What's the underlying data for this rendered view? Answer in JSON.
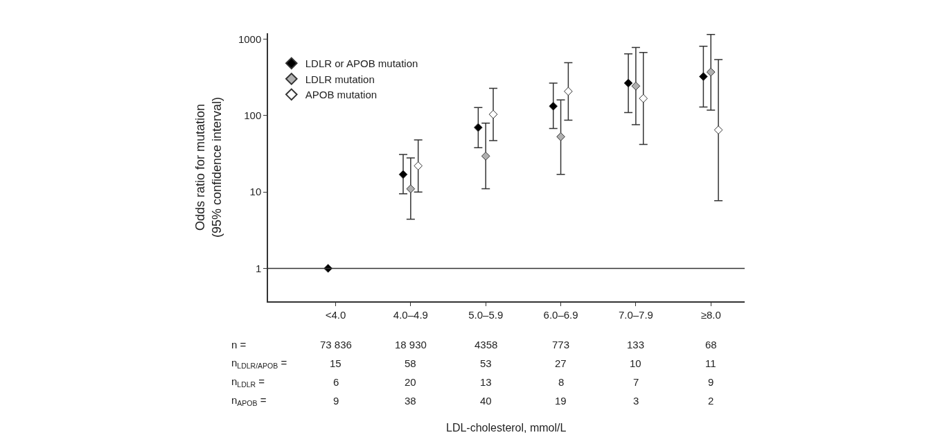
{
  "chart_data": {
    "type": "scatter",
    "ylabel": "Odds ratio for mutation\n(95% confidence interval)",
    "categories": [
      "<4.0",
      "4.0–4.9",
      "5.0–5.9",
      "6.0–6.9",
      "7.0–7.9",
      "≥8.0"
    ],
    "series": [
      {
        "name": "LDLR or APOB mutation",
        "color": "#000000",
        "values": [
          1,
          17,
          70,
          133,
          267,
          325
        ],
        "errors": [
          null,
          [
            9.5,
            31
          ],
          [
            38,
            128
          ],
          [
            68,
            267
          ],
          [
            110,
            645
          ],
          [
            130,
            811
          ]
        ]
      },
      {
        "name": "LDLR mutation",
        "color": "#b0b0b0",
        "values": [
          null,
          11,
          29.5,
          53,
          244,
          372
        ],
        "errors": [
          null,
          [
            4.4,
            28
          ],
          [
            11,
            80
          ],
          [
            17,
            161
          ],
          [
            76,
            783
          ],
          [
            118,
            1158
          ]
        ]
      },
      {
        "name": "APOB mutation",
        "color": "#ffffff",
        "values": [
          null,
          22,
          104,
          208,
          168,
          65
        ],
        "errors": [
          null,
          [
            10,
            48
          ],
          [
            47,
            228
          ],
          [
            87,
            494
          ],
          [
            42,
            671
          ],
          [
            7.7,
            542
          ]
        ]
      }
    ],
    "log": true,
    "ylim": [
      0.37,
      1200
    ],
    "yticks": [
      1,
      10,
      100,
      1000
    ],
    "marker": "diamond",
    "legend": "top left",
    "ref_lines": [
      {
        "axis": "y",
        "value": 1
      }
    ],
    "annotations": [
      "n =",
      "73 836",
      "18 930",
      "4358",
      "773",
      "133",
      "68",
      "n$_{LDLR/APOB}$ =",
      "15",
      "58",
      "53",
      "27",
      "10",
      "11",
      "n$_{LDLR}$ =",
      "6",
      "20",
      "13",
      "8",
      "7",
      "9",
      "n$_{APOB}$ =",
      "9",
      "38",
      "40",
      "19",
      "3",
      "2",
      "LDL-cholesterol, mmol/L"
    ]
  }
}
